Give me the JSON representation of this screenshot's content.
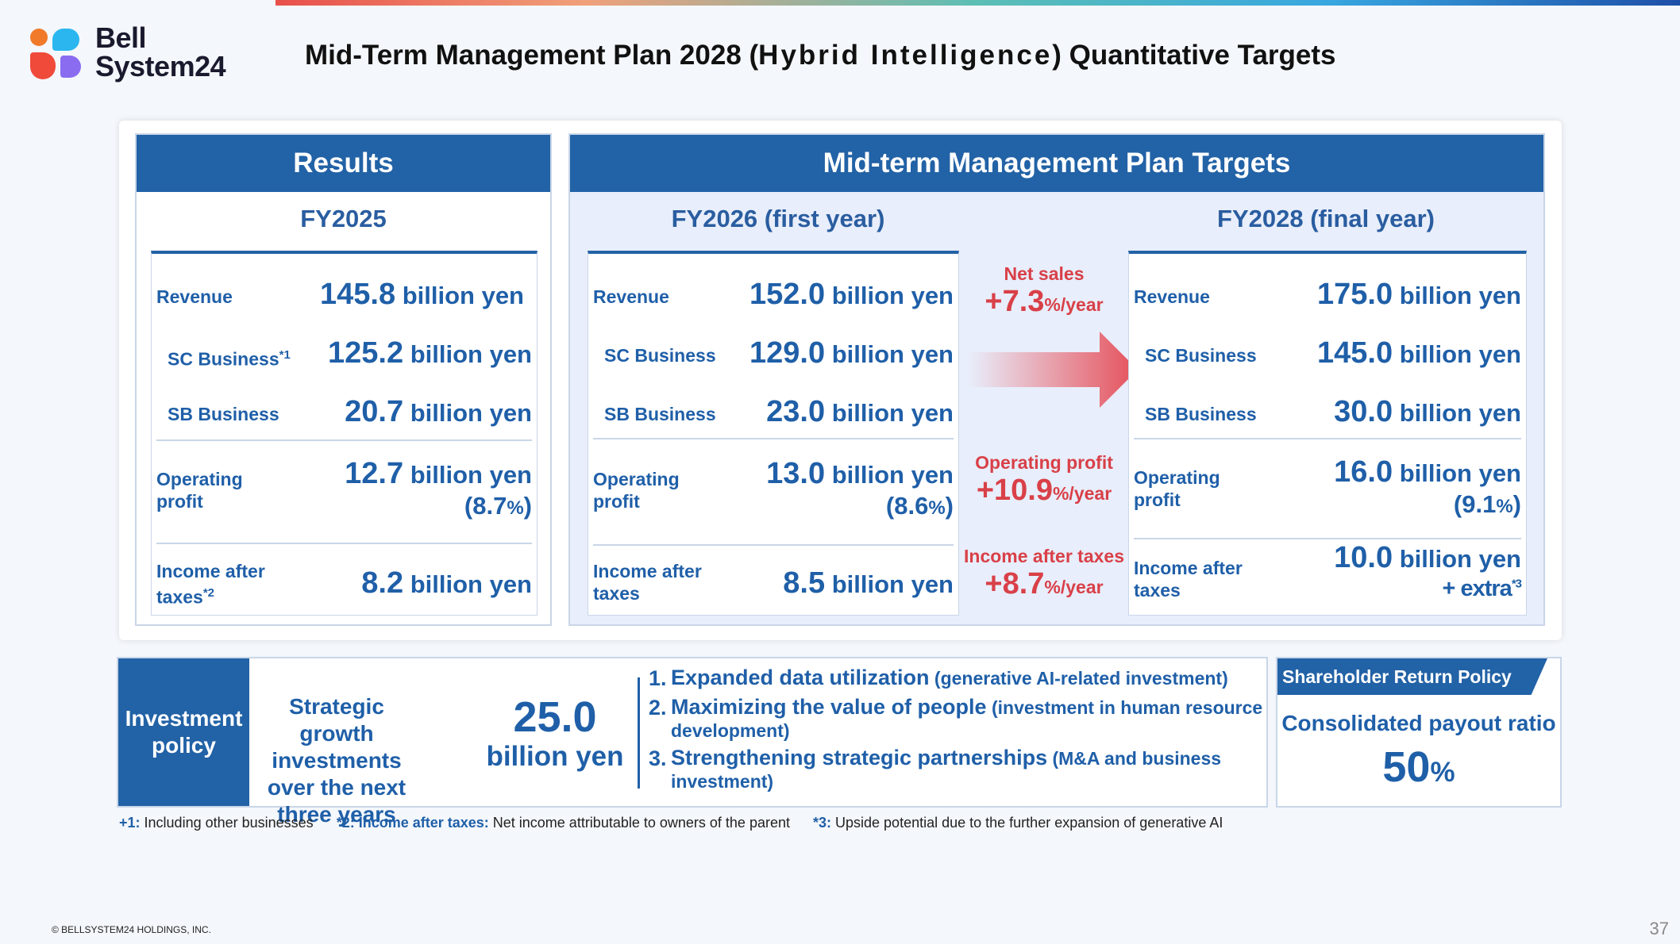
{
  "header": {
    "logo": {
      "line1": "Bell",
      "line2": "System24"
    },
    "title_pre": "Mid-Term Management Plan 2028 (",
    "title_hi": "Hybrid Intelligence",
    "title_post": ") Quantitative Targets"
  },
  "results": {
    "heading": "Results",
    "fy": "FY2025",
    "revenue": {
      "label": "Revenue",
      "num": "145.8",
      "unit": " billion yen"
    },
    "sc": {
      "label": "SC Business",
      "sup": "*1",
      "num": "125.2",
      "unit": " billion yen"
    },
    "sb": {
      "label": "SB Business",
      "num": "20.7",
      "unit": " billion yen"
    },
    "op": {
      "label1": "Operating",
      "label2": "profit",
      "num": "12.7",
      "unit": " billion yen",
      "pct": "(8.7",
      "pct_sign": "%",
      "pct_close": ")"
    },
    "inc": {
      "label1": "Income after",
      "label2": "taxes",
      "sup": "*2",
      "num": "8.2",
      "unit": " billion yen"
    }
  },
  "targets": {
    "heading": "Mid-term Management Plan Targets",
    "fy2026": {
      "fy": "FY2026 (first year)",
      "revenue": {
        "label": "Revenue",
        "num": "152.0",
        "unit": " billion yen"
      },
      "sc": {
        "label": "SC Business",
        "num": "129.0",
        "unit": " billion yen"
      },
      "sb": {
        "label": "SB Business",
        "num": "23.0",
        "unit": " billion yen"
      },
      "op": {
        "label1": "Operating",
        "label2": "profit",
        "num": "13.0",
        "unit": " billion yen",
        "pct": "(8.6",
        "pct_sign": "%",
        "pct_close": ")"
      },
      "inc": {
        "label1": "Income after",
        "label2": "taxes",
        "num": "8.5",
        "unit": " billion yen"
      }
    },
    "fy2028": {
      "fy": "FY2028 (final year)",
      "revenue": {
        "label": "Revenue",
        "num": "175.0",
        "unit": " billion yen"
      },
      "sc": {
        "label": "SC Business",
        "num": "145.0",
        "unit": " billion yen"
      },
      "sb": {
        "label": "SB Business",
        "num": "30.0",
        "unit": " billion yen"
      },
      "op": {
        "label1": "Operating",
        "label2": "profit",
        "num": "16.0",
        "unit": " billion yen",
        "pct": "(9.1",
        "pct_sign": "%",
        "pct_close": ")"
      },
      "inc": {
        "label1": "Income after",
        "label2": "taxes",
        "num": "10.0",
        "unit": " billion yen",
        "extra": "+ extra",
        "sup": "*3"
      }
    },
    "growth": {
      "net_sales": {
        "label": "Net sales",
        "value": "+7.3",
        "unit": "%/year"
      },
      "op_profit": {
        "label": "Operating profit",
        "value": "+10.9",
        "unit": "%/year"
      },
      "income": {
        "label": "Income after taxes",
        "value": "+8.7",
        "unit": "%/year"
      }
    }
  },
  "investment": {
    "heading1": "Investment",
    "heading2": "policy",
    "desc": "Strategic growth investments over the next three years",
    "amount": "25.0",
    "amount_unit": "billion yen",
    "items": [
      {
        "n": "1.",
        "main": "Expanded data utilization",
        "note": " (generative AI-related investment)"
      },
      {
        "n": "2.",
        "main": "Maximizing the value of people",
        "note": " (investment in human resource development)"
      },
      {
        "n": "3.",
        "main": "Strengthening strategic partnerships",
        "note": " (M&A and business investment)"
      }
    ]
  },
  "shareholder": {
    "tag": "Shareholder Return Policy",
    "label": "Consolidated payout ratio",
    "value": "50",
    "unit": "%"
  },
  "footnotes": {
    "n1_key": "+1:",
    "n1_text": " Including other businesses",
    "n2_key": "*2: Income after taxes:",
    "n2_text": " Net income attributable to owners of the parent",
    "n3_key": "*3:",
    "n3_text": " Upside potential due to the further expansion of generative AI"
  },
  "footer": {
    "copyright": "© BELLSYSTEM24 HOLDINGS, INC.",
    "page": "37"
  },
  "colors": {
    "brand_blue": "#2262a6",
    "growth_red": "#d94048",
    "panel_bg": "#e8eefb"
  }
}
